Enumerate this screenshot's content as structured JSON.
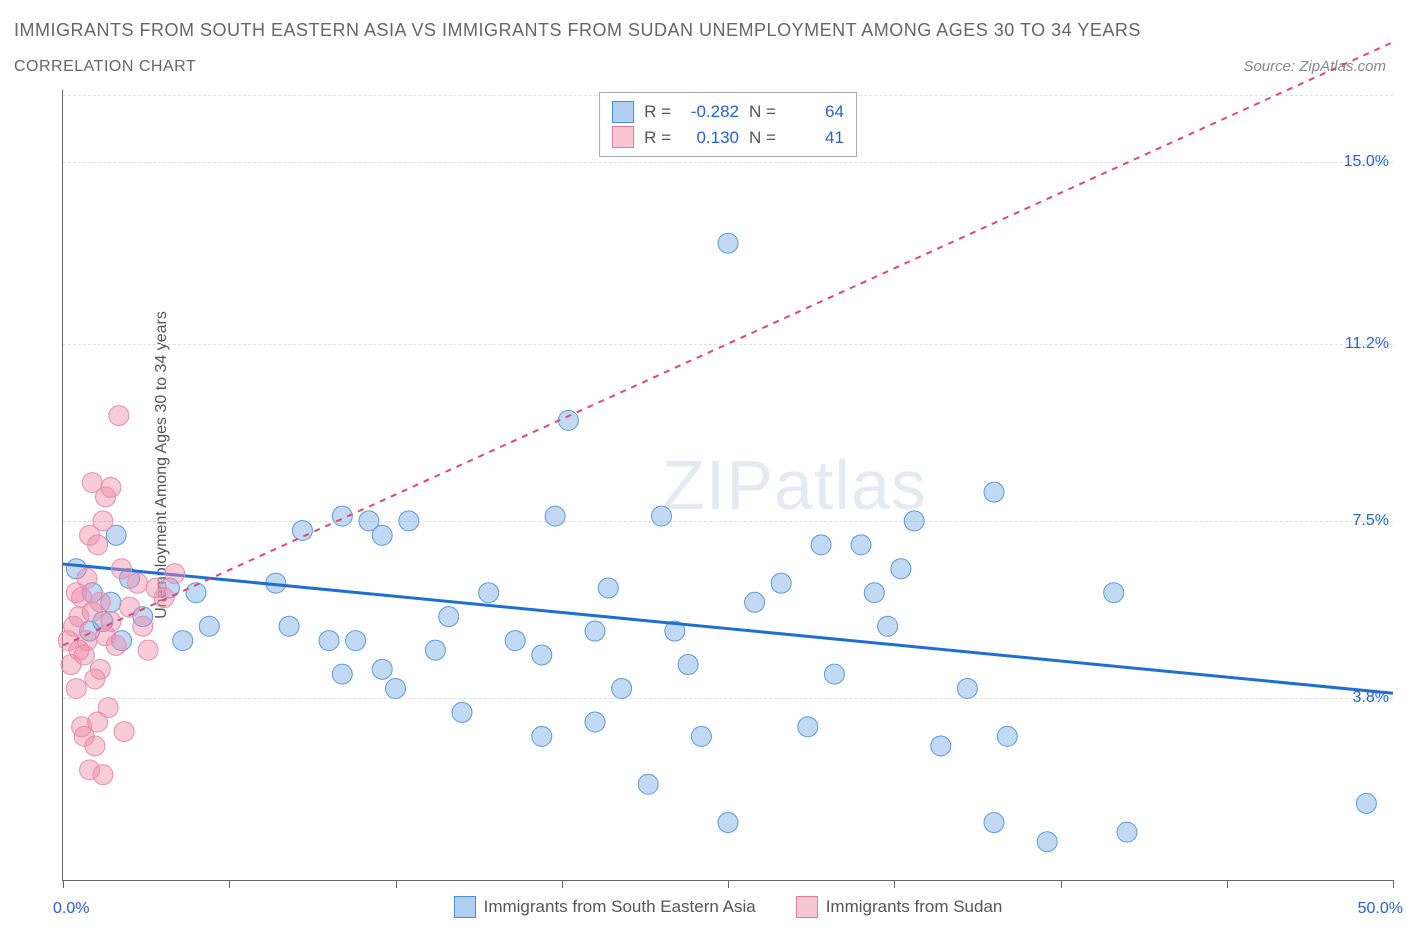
{
  "title": "IMMIGRANTS FROM SOUTH EASTERN ASIA VS IMMIGRANTS FROM SUDAN UNEMPLOYMENT AMONG AGES 30 TO 34 YEARS",
  "subtitle": "CORRELATION CHART",
  "source": "Source: ZipAtlas.com",
  "ylabel": "Unemployment Among Ages 30 to 34 years",
  "watermark_a": "ZIP",
  "watermark_b": "atlas",
  "chart": {
    "type": "scatter",
    "xlim": [
      0,
      50
    ],
    "ylim": [
      0,
      16.5
    ],
    "xtick_labels": [
      {
        "v": 0,
        "label": "0.0%"
      },
      {
        "v": 50,
        "label": "50.0%"
      }
    ],
    "xticks": [
      0,
      6.25,
      12.5,
      18.75,
      25,
      31.25,
      37.5,
      43.75,
      50
    ],
    "ytick_labels": [
      {
        "v": 3.8,
        "label": "3.8%"
      },
      {
        "v": 7.5,
        "label": "7.5%"
      },
      {
        "v": 11.2,
        "label": "11.2%"
      },
      {
        "v": 15.0,
        "label": "15.0%"
      }
    ],
    "grid_y": [
      3.8,
      7.5,
      11.2,
      15.0,
      16.4
    ],
    "background_color": "#ffffff",
    "grid_color": "#e0e0e0",
    "axis_color": "#666666",
    "series": [
      {
        "name": "Immigrants from South Eastern Asia",
        "color_fill": "rgba(120,170,230,0.45)",
        "color_stroke": "#5a9bd5",
        "marker_r": 10,
        "line_color": "#1f6fd0",
        "line_width": 3,
        "line_dash": "none",
        "R": "-0.282",
        "N": "64",
        "regression": {
          "x1": 0,
          "y1": 6.6,
          "x2": 50,
          "y2": 3.9
        },
        "points": [
          [
            0.5,
            6.5
          ],
          [
            1.0,
            5.2
          ],
          [
            1.1,
            6.0
          ],
          [
            1.5,
            5.4
          ],
          [
            1.8,
            5.8
          ],
          [
            2.0,
            7.2
          ],
          [
            2.2,
            5.0
          ],
          [
            2.5,
            6.3
          ],
          [
            3.0,
            5.5
          ],
          [
            4.0,
            6.1
          ],
          [
            4.5,
            5.0
          ],
          [
            5.0,
            6.0
          ],
          [
            5.5,
            5.3
          ],
          [
            8.0,
            6.2
          ],
          [
            8.5,
            5.3
          ],
          [
            9.0,
            7.3
          ],
          [
            10.0,
            5.0
          ],
          [
            10.5,
            4.3
          ],
          [
            10.5,
            7.6
          ],
          [
            11.0,
            5.0
          ],
          [
            11.5,
            7.5
          ],
          [
            12.0,
            4.4
          ],
          [
            12.0,
            7.2
          ],
          [
            12.5,
            4.0
          ],
          [
            13.0,
            7.5
          ],
          [
            14.0,
            4.8
          ],
          [
            14.5,
            5.5
          ],
          [
            15.0,
            3.5
          ],
          [
            16.0,
            6.0
          ],
          [
            18.0,
            3.0
          ],
          [
            18.0,
            4.7
          ],
          [
            18.5,
            7.6
          ],
          [
            19.0,
            9.6
          ],
          [
            20.0,
            3.3
          ],
          [
            20.0,
            5.2
          ],
          [
            20.5,
            6.1
          ],
          [
            21.0,
            4.0
          ],
          [
            22.0,
            2.0
          ],
          [
            22.5,
            7.6
          ],
          [
            23.0,
            5.2
          ],
          [
            23.5,
            4.5
          ],
          [
            24.0,
            3.0
          ],
          [
            25.0,
            1.2
          ],
          [
            25.0,
            13.3
          ],
          [
            26.0,
            5.8
          ],
          [
            27.0,
            6.2
          ],
          [
            28.0,
            3.2
          ],
          [
            28.5,
            7.0
          ],
          [
            29.0,
            4.3
          ],
          [
            30.0,
            7.0
          ],
          [
            30.5,
            6.0
          ],
          [
            31.0,
            5.3
          ],
          [
            31.5,
            6.5
          ],
          [
            32.0,
            7.5
          ],
          [
            33.0,
            2.8
          ],
          [
            34.0,
            4.0
          ],
          [
            35.0,
            8.1
          ],
          [
            35.0,
            1.2
          ],
          [
            37.0,
            0.8
          ],
          [
            39.5,
            6.0
          ],
          [
            40.0,
            1.0
          ],
          [
            49.0,
            1.6
          ],
          [
            17.0,
            5.0
          ],
          [
            35.5,
            3.0
          ]
        ]
      },
      {
        "name": "Immigrants from Sudan",
        "color_fill": "rgba(240,140,170,0.45)",
        "color_stroke": "#e38fae",
        "marker_r": 10,
        "line_color": "#d94a7a",
        "line_width": 2,
        "line_dash": "6,6",
        "R": "0.130",
        "N": "41",
        "regression": {
          "x1": 0,
          "y1": 4.9,
          "x2": 50,
          "y2": 17.5
        },
        "points": [
          [
            0.2,
            5.0
          ],
          [
            0.3,
            4.5
          ],
          [
            0.4,
            5.3
          ],
          [
            0.5,
            6.0
          ],
          [
            0.5,
            4.0
          ],
          [
            0.6,
            5.5
          ],
          [
            0.6,
            4.8
          ],
          [
            0.7,
            3.2
          ],
          [
            0.7,
            5.9
          ],
          [
            0.8,
            3.0
          ],
          [
            0.8,
            4.7
          ],
          [
            0.9,
            6.3
          ],
          [
            0.9,
            5.0
          ],
          [
            1.0,
            7.2
          ],
          [
            1.0,
            2.3
          ],
          [
            1.1,
            5.6
          ],
          [
            1.1,
            8.3
          ],
          [
            1.2,
            2.8
          ],
          [
            1.2,
            4.2
          ],
          [
            1.3,
            7.0
          ],
          [
            1.3,
            3.3
          ],
          [
            1.4,
            5.8
          ],
          [
            1.4,
            4.4
          ],
          [
            1.5,
            2.2
          ],
          [
            1.5,
            7.5
          ],
          [
            1.6,
            5.1
          ],
          [
            1.6,
            8.0
          ],
          [
            1.7,
            3.6
          ],
          [
            1.8,
            5.4
          ],
          [
            1.8,
            8.2
          ],
          [
            2.0,
            4.9
          ],
          [
            2.1,
            9.7
          ],
          [
            2.2,
            6.5
          ],
          [
            2.3,
            3.1
          ],
          [
            2.5,
            5.7
          ],
          [
            2.8,
            6.2
          ],
          [
            3.0,
            5.3
          ],
          [
            3.2,
            4.8
          ],
          [
            3.5,
            6.1
          ],
          [
            3.8,
            5.9
          ],
          [
            4.2,
            6.4
          ]
        ]
      }
    ]
  },
  "legend": [
    {
      "label": "Immigrants from South Eastern Asia",
      "swatch": "blue"
    },
    {
      "label": "Immigrants from Sudan",
      "swatch": "pink"
    }
  ]
}
